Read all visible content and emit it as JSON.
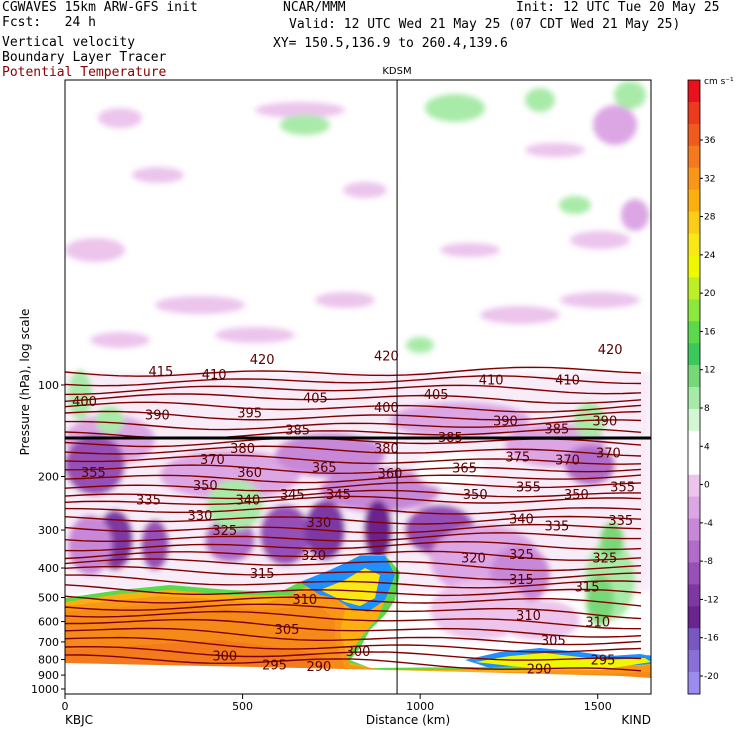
{
  "header": {
    "model": "CGWAVES 15km ARW-GFS init",
    "fcst": "Fcst:   24 h",
    "field1": "Vertical velocity",
    "field2": "Boundary Layer Tracer",
    "field3": "Potential Temperature",
    "center": "NCAR/MMM",
    "init": "Init: 12 UTC Tue 20 May 25",
    "valid": "Valid: 12 UTC Wed 21 May 25 (07 CDT Wed 21 May 25)",
    "xy": "XY= 150.5,136.9 to 260.4,139.6"
  },
  "chart_data": {
    "type": "cross-section",
    "title": "KDSM",
    "xlabel": "Distance (km)",
    "ylabel": "Pressure (hPa), log scale",
    "x_ticks": [
      0,
      500,
      1000,
      1500
    ],
    "xlim": [
      0,
      1650
    ],
    "y_ticks": [
      100,
      200,
      300,
      400,
      500,
      600,
      700,
      800,
      900,
      1000
    ],
    "ylim": [
      1050,
      10
    ],
    "y_scale": "log",
    "left_station": "KBJC",
    "right_station": "KIND",
    "station_marker_km": 935,
    "colorbar": {
      "unit": "cm s⁻¹",
      "tick_labels": [
        "36",
        "32",
        "28",
        "24",
        "20",
        "16",
        "12",
        "8",
        "4",
        "0",
        "-4",
        "-8",
        "-12",
        "-16",
        "-20"
      ],
      "colors": [
        "#e8121c",
        "#ec3a1e",
        "#f05a1e",
        "#f47a1e",
        "#f89618",
        "#fbb010",
        "#fccc18",
        "#f8e818",
        "#eef800",
        "#bcef28",
        "#8ce83c",
        "#5cd84c",
        "#3cc85c",
        "#78d878",
        "#a8eaa8",
        "#d4f6d4",
        "#ffffff",
        "#ffffff",
        "#ecc4ec",
        "#dca6e4",
        "#c888d8",
        "#b06cc8",
        "#9650b6",
        "#7e38a4",
        "#6a2490",
        "#7858c0",
        "#8870d8",
        "#9c8cf0"
      ]
    },
    "theta_labels": [
      {
        "value": 420,
        "x_km": 555,
        "p": 82
      },
      {
        "value": 420,
        "x_km": 905,
        "p": 80
      },
      {
        "value": 420,
        "x_km": 1535,
        "p": 76
      },
      {
        "value": 415,
        "x_km": 270,
        "p": 90
      },
      {
        "value": 410,
        "x_km": 420,
        "p": 92
      },
      {
        "value": 410,
        "x_km": 1200,
        "p": 96
      },
      {
        "value": 410,
        "x_km": 1415,
        "p": 96
      },
      {
        "value": 405,
        "x_km": 705,
        "p": 110
      },
      {
        "value": 405,
        "x_km": 1045,
        "p": 107
      },
      {
        "value": 400,
        "x_km": 55,
        "p": 113
      },
      {
        "value": 400,
        "x_km": 905,
        "p": 118
      },
      {
        "value": 395,
        "x_km": 520,
        "p": 123
      },
      {
        "value": 390,
        "x_km": 260,
        "p": 125
      },
      {
        "value": 390,
        "x_km": 1240,
        "p": 131
      },
      {
        "value": 390,
        "x_km": 1520,
        "p": 131
      },
      {
        "value": 385,
        "x_km": 655,
        "p": 140
      },
      {
        "value": 385,
        "x_km": 1385,
        "p": 139
      },
      {
        "value": 385,
        "x_km": 1085,
        "p": 148
      },
      {
        "value": 380,
        "x_km": 500,
        "p": 161
      },
      {
        "value": 380,
        "x_km": 905,
        "p": 161
      },
      {
        "value": 375,
        "x_km": 1275,
        "p": 172
      },
      {
        "value": 370,
        "x_km": 415,
        "p": 175
      },
      {
        "value": 370,
        "x_km": 1415,
        "p": 176
      },
      {
        "value": 370,
        "x_km": 1530,
        "p": 167
      },
      {
        "value": 365,
        "x_km": 730,
        "p": 186
      },
      {
        "value": 365,
        "x_km": 1125,
        "p": 187
      },
      {
        "value": 360,
        "x_km": 520,
        "p": 193
      },
      {
        "value": 360,
        "x_km": 915,
        "p": 195
      },
      {
        "value": 355,
        "x_km": 80,
        "p": 193
      },
      {
        "value": 355,
        "x_km": 1305,
        "p": 216
      },
      {
        "value": 355,
        "x_km": 1570,
        "p": 216
      },
      {
        "value": 350,
        "x_km": 395,
        "p": 213
      },
      {
        "value": 350,
        "x_km": 1155,
        "p": 228
      },
      {
        "value": 350,
        "x_km": 1440,
        "p": 228
      },
      {
        "value": 345,
        "x_km": 640,
        "p": 228
      },
      {
        "value": 345,
        "x_km": 770,
        "p": 228
      },
      {
        "value": 340,
        "x_km": 515,
        "p": 238
      },
      {
        "value": 340,
        "x_km": 1285,
        "p": 275
      },
      {
        "value": 335,
        "x_km": 235,
        "p": 238
      },
      {
        "value": 335,
        "x_km": 1385,
        "p": 290
      },
      {
        "value": 335,
        "x_km": 1565,
        "p": 278
      },
      {
        "value": 330,
        "x_km": 380,
        "p": 268
      },
      {
        "value": 330,
        "x_km": 715,
        "p": 282
      },
      {
        "value": 325,
        "x_km": 450,
        "p": 300
      },
      {
        "value": 325,
        "x_km": 1285,
        "p": 360
      },
      {
        "value": 325,
        "x_km": 1520,
        "p": 370
      },
      {
        "value": 320,
        "x_km": 700,
        "p": 362
      },
      {
        "value": 320,
        "x_km": 1150,
        "p": 370
      },
      {
        "value": 315,
        "x_km": 555,
        "p": 415
      },
      {
        "value": 315,
        "x_km": 1285,
        "p": 435
      },
      {
        "value": 315,
        "x_km": 1470,
        "p": 460
      },
      {
        "value": 310,
        "x_km": 675,
        "p": 505
      },
      {
        "value": 310,
        "x_km": 1305,
        "p": 570
      },
      {
        "value": 310,
        "x_km": 1500,
        "p": 600
      },
      {
        "value": 305,
        "x_km": 625,
        "p": 635
      },
      {
        "value": 305,
        "x_km": 1375,
        "p": 690
      },
      {
        "value": 300,
        "x_km": 450,
        "p": 775
      },
      {
        "value": 300,
        "x_km": 825,
        "p": 750
      },
      {
        "value": 295,
        "x_km": 590,
        "p": 830
      },
      {
        "value": 295,
        "x_km": 1515,
        "p": 800
      },
      {
        "value": 290,
        "x_km": 715,
        "p": 840
      },
      {
        "value": 290,
        "x_km": 1335,
        "p": 855
      }
    ]
  }
}
